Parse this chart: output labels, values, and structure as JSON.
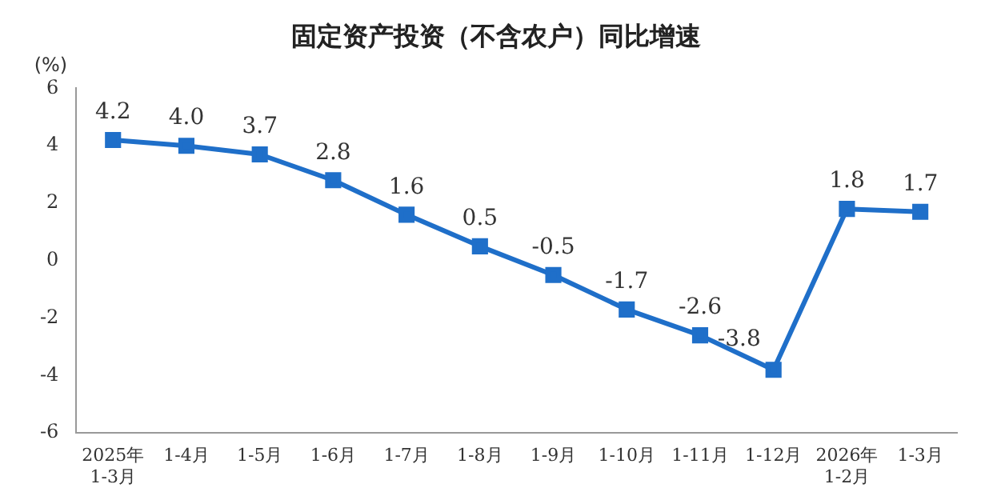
{
  "chart_data": {
    "type": "line",
    "title": "固定资产投资（不含农户）同比增速",
    "ylabel": "(%)",
    "categories": [
      "2025年\n1-3月",
      "1-4月",
      "1-5月",
      "1-6月",
      "1-7月",
      "1-8月",
      "1-9月",
      "1-10月",
      "1-11月",
      "1-12月",
      "2026年\n1-2月",
      "1-3月"
    ],
    "series": [
      {
        "color": "#1f6fc9",
        "values": [
          4.2,
          4.0,
          3.7,
          2.8,
          1.6,
          0.5,
          -0.5,
          -1.7,
          -2.6,
          -3.8,
          1.8,
          1.7
        ]
      }
    ],
    "value_labels": [
      "4.2",
      "4.0",
      "3.7",
      "2.8",
      "1.6",
      "0.5",
      "-0.5",
      "-1.7",
      "-2.6",
      "-3.8",
      "1.8",
      "1.7"
    ],
    "ylim": [
      -6,
      6
    ],
    "yticks": [
      -6,
      -4,
      -2,
      0,
      2,
      4,
      6
    ],
    "marker": "square",
    "line_style": "solid",
    "grid": false,
    "legend": false
  }
}
